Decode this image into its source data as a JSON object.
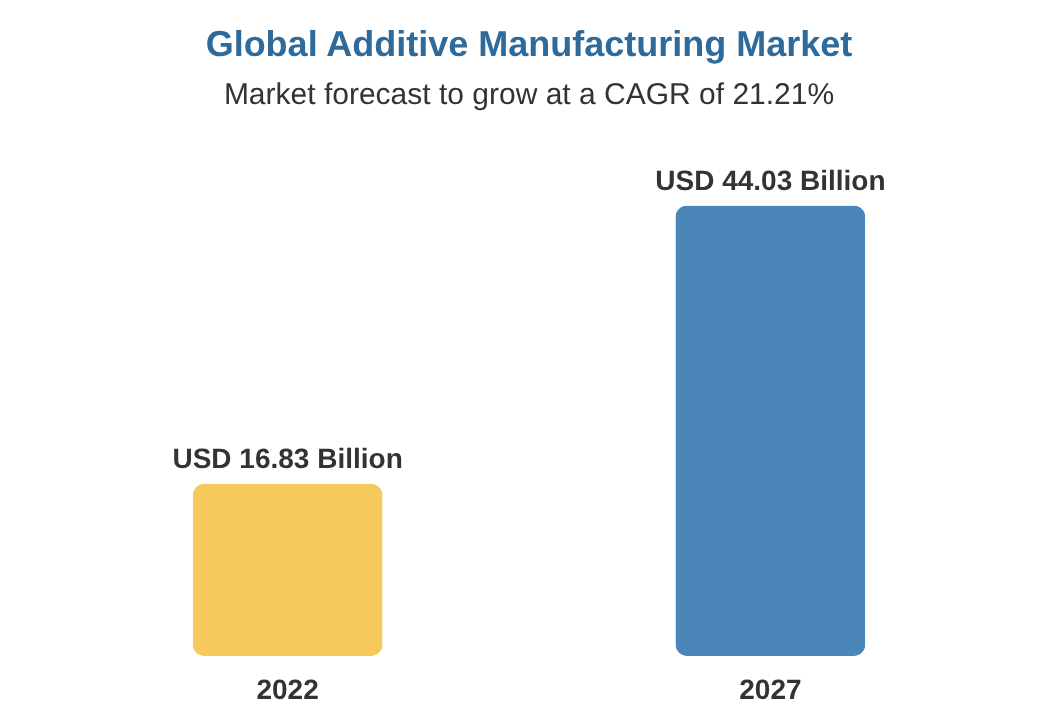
{
  "chart_data": {
    "type": "bar",
    "title": "Global Additive Manufacturing Market",
    "subtitle": "Market forecast to grow at a CAGR of 21.21%",
    "categories": [
      "2022",
      "2027"
    ],
    "tick_labels": "x",
    "grid": false,
    "values": [
      16.83,
      44.03
    ],
    "colors": [
      "#f5c95c",
      "#4a86b8"
    ],
    "value_labels": [
      "USD 16.83 Billion",
      "USD 44.03 Billion"
    ]
  }
}
